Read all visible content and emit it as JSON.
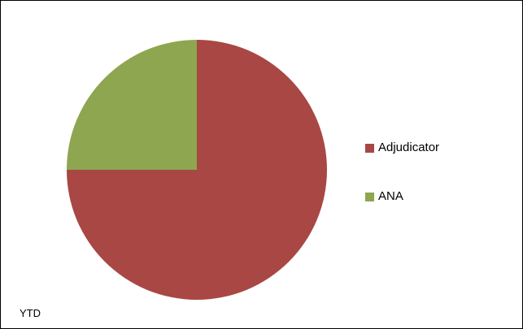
{
  "chart_data": {
    "type": "pie",
    "title": "",
    "slices": [
      {
        "label": "Adjudicator",
        "value": 75,
        "color": "#A84744"
      },
      {
        "label": "ANA",
        "value": 25,
        "color": "#8DA64F"
      }
    ],
    "start_angle_deg": 0,
    "direction": "clockwise",
    "legend_position": "right"
  },
  "footnote": "YTD"
}
